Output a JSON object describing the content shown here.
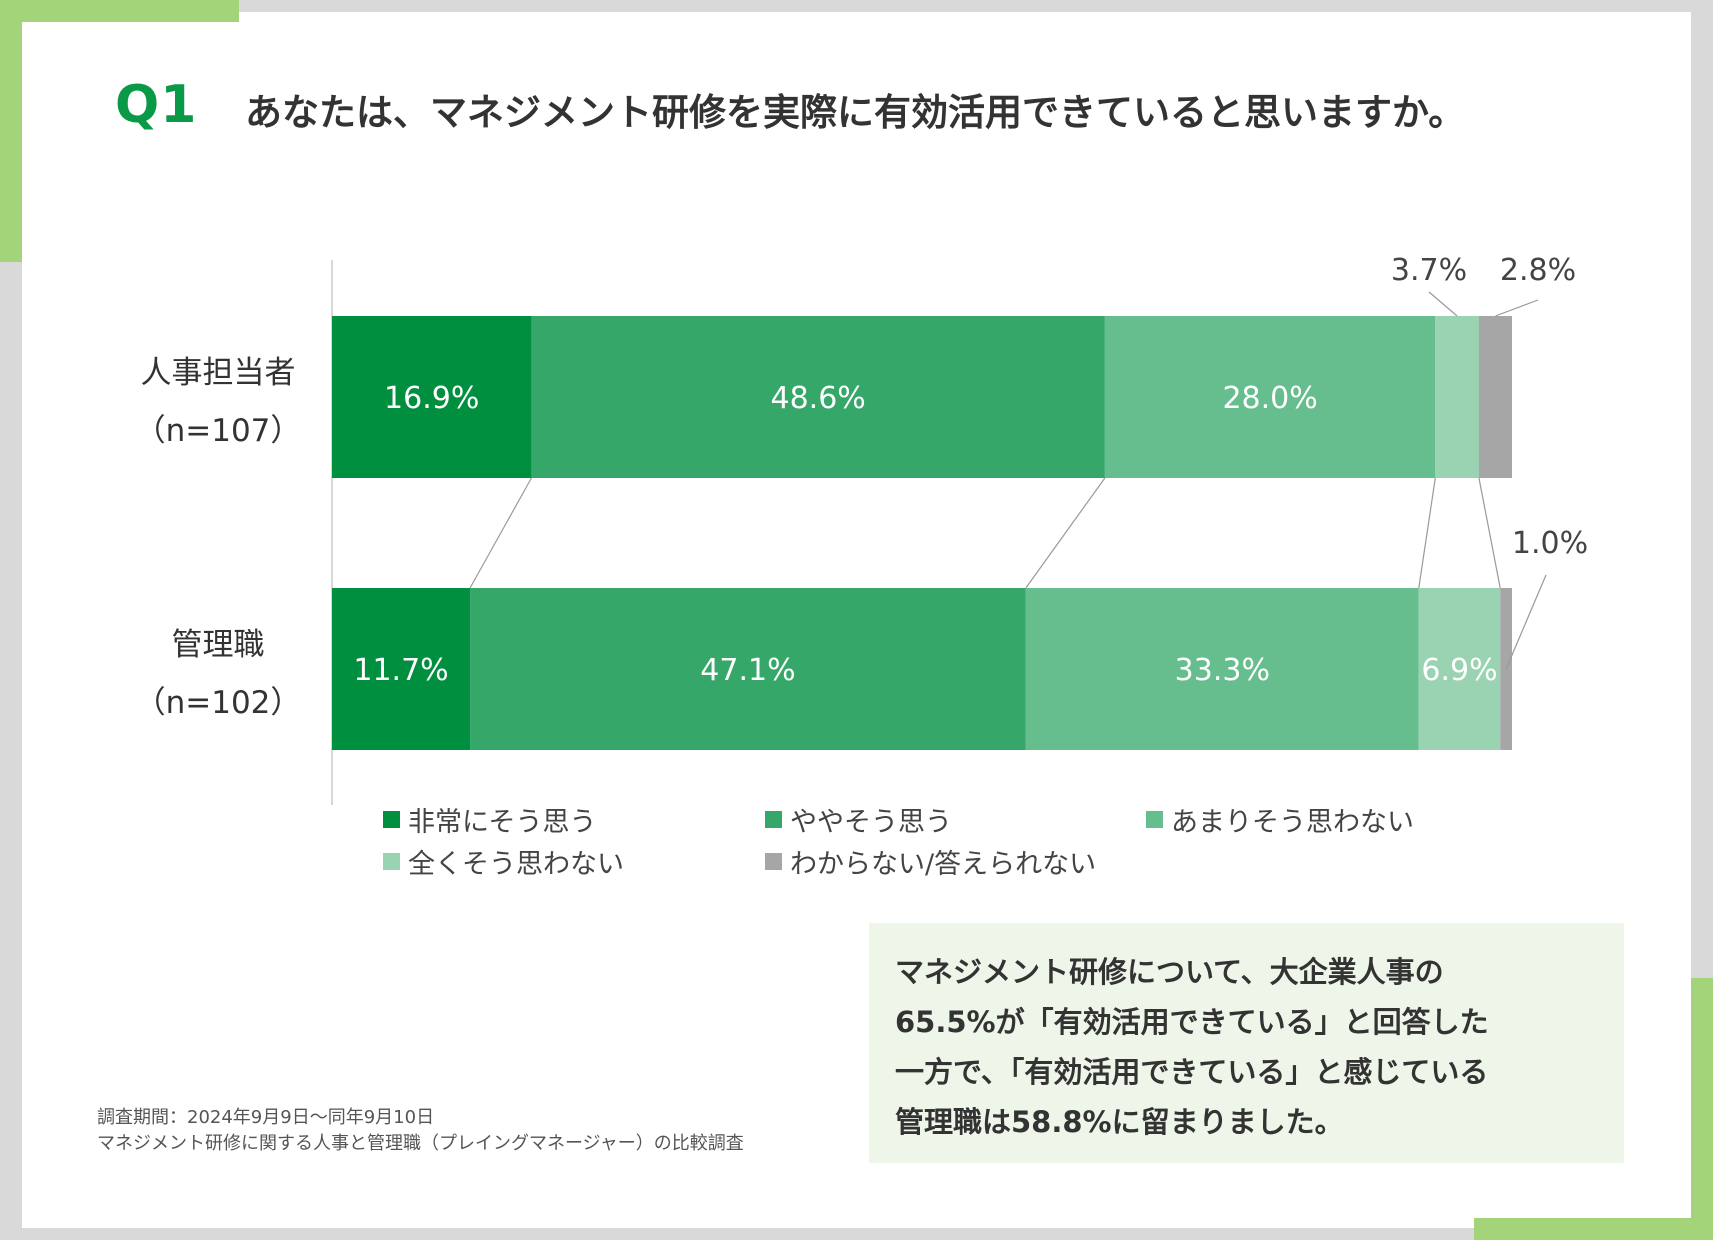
{
  "question": {
    "label": "Q1",
    "text": "あなたは、マネジメント研修を実際に有効活用できていると思いますか。"
  },
  "chart_data": {
    "type": "bar",
    "orientation": "horizontal",
    "stacked": true,
    "normalized_percent": true,
    "categories": [
      {
        "name": "人事担当者",
        "sample": "（n=107）"
      },
      {
        "name": "管理職",
        "sample": "（n=102）"
      }
    ],
    "series": [
      {
        "name": "非常にそう思う",
        "color": "#008f3f",
        "values": [
          16.9,
          11.7
        ],
        "labels": [
          "16.9%",
          "11.7%"
        ]
      },
      {
        "name": "ややそう思う",
        "color": "#34a769",
        "values": [
          48.6,
          47.1
        ],
        "labels": [
          "48.6%",
          "47.1%"
        ]
      },
      {
        "name": "あまりそう思わない",
        "color": "#66bd8d",
        "values": [
          28.0,
          33.3
        ],
        "labels": [
          "28.0%",
          "33.3%"
        ]
      },
      {
        "name": "全くそう思わない",
        "color": "#99d3b1",
        "values": [
          3.7,
          6.9
        ],
        "labels": [
          "3.7%",
          "6.9%"
        ]
      },
      {
        "name": "わからない/答えられない",
        "color": "#a6a6a6",
        "values": [
          2.8,
          1.0
        ],
        "labels": [
          "2.8%",
          "1.0%"
        ]
      }
    ],
    "legend_position": "bottom",
    "grid": false
  },
  "summary": {
    "lines": [
      "マネジメント研修について、大企業人事の",
      "65.5%が「有効活用できている」と回答した",
      "一方で、「有効活用できている」と感じている",
      "管理職は58.8%に留まりました。"
    ]
  },
  "source": {
    "line1": "調査期間：2024年9月9日〜同年9月10日",
    "line2": "マネジメント研修に関する人事と管理職（プレイングマネージャー）の比較調査"
  },
  "colors": {
    "accent_green": "#a3d47a",
    "question_label": "#0a9a47",
    "summary_bg": "#eef6e9"
  }
}
